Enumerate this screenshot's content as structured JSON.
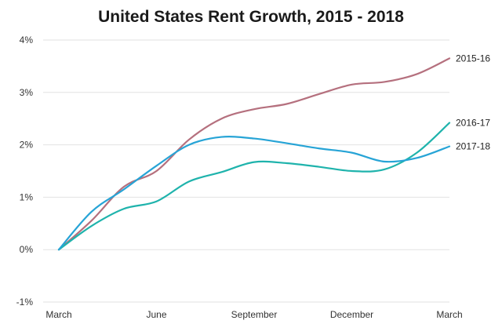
{
  "chart_data": {
    "type": "line",
    "title": "United States Rent Growth, 2015 - 2018",
    "xlabel": "",
    "ylabel": "",
    "x_ticks": [
      "March",
      "June",
      "September",
      "December",
      "March"
    ],
    "x": [
      0,
      1,
      2,
      3,
      4,
      5,
      6,
      7,
      8,
      9,
      10,
      11,
      12
    ],
    "xlim": [
      0,
      12
    ],
    "ylim": [
      -1,
      4
    ],
    "y_ticks": [
      "-1%",
      "0%",
      "1%",
      "2%",
      "3%",
      "4%"
    ],
    "grid": true,
    "series": [
      {
        "name": "2015-16",
        "color": "#b5707e",
        "values": [
          0,
          0.55,
          1.2,
          1.5,
          2.1,
          2.5,
          2.68,
          2.78,
          2.97,
          3.15,
          3.2,
          3.35,
          3.65
        ]
      },
      {
        "name": "2016-17",
        "color": "#1fb3ac",
        "values": [
          0,
          0.45,
          0.78,
          0.92,
          1.3,
          1.48,
          1.67,
          1.65,
          1.58,
          1.5,
          1.53,
          1.85,
          2.42
        ]
      },
      {
        "name": "2017-18",
        "color": "#27a4d6",
        "values": [
          0,
          0.72,
          1.15,
          1.6,
          2.0,
          2.15,
          2.12,
          2.03,
          1.93,
          1.85,
          1.68,
          1.75,
          1.97
        ]
      }
    ]
  }
}
